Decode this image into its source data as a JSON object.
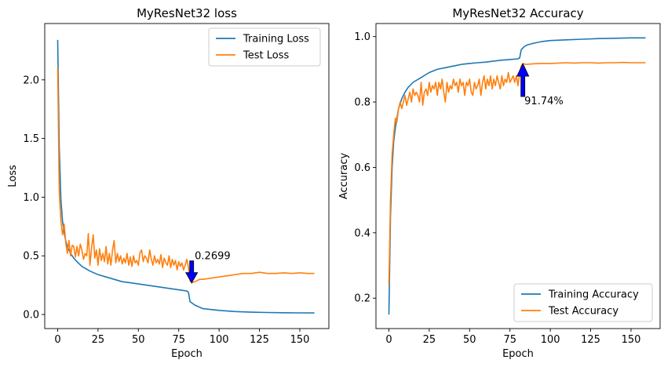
{
  "chart_data": [
    {
      "type": "line",
      "title": "MyResNet32 loss",
      "xlabel": "Epoch",
      "ylabel": "Loss",
      "xlim": [
        -8,
        168
      ],
      "ylim": [
        -0.12,
        2.48
      ],
      "xticks": [
        0,
        25,
        50,
        75,
        100,
        125,
        150
      ],
      "yticks": [
        0.0,
        0.5,
        1.0,
        1.5,
        2.0
      ],
      "ytick_labels": [
        "0.0",
        "0.5",
        "1.0",
        "1.5",
        "2.0"
      ],
      "legend_position": "top-right",
      "series": [
        {
          "name": "Training Loss",
          "color": "#1f77b4",
          "x": [
            0,
            1,
            2,
            3,
            4,
            5,
            6,
            8,
            10,
            12,
            15,
            20,
            25,
            30,
            35,
            40,
            45,
            50,
            55,
            60,
            65,
            70,
            75,
            80,
            81,
            82,
            85,
            90,
            100,
            110,
            120,
            130,
            140,
            150,
            159
          ],
          "y": [
            2.34,
            1.42,
            0.98,
            0.8,
            0.7,
            0.63,
            0.58,
            0.52,
            0.48,
            0.45,
            0.41,
            0.37,
            0.34,
            0.32,
            0.3,
            0.28,
            0.27,
            0.26,
            0.25,
            0.24,
            0.23,
            0.22,
            0.21,
            0.2,
            0.19,
            0.11,
            0.08,
            0.05,
            0.035,
            0.025,
            0.02,
            0.017,
            0.015,
            0.014,
            0.013
          ]
        },
        {
          "name": "Test Loss",
          "color": "#ff7f0e",
          "x": [
            0,
            1,
            2,
            3,
            4,
            5,
            6,
            7,
            8,
            9,
            10,
            11,
            12,
            13,
            14,
            15,
            16,
            17,
            18,
            19,
            20,
            21,
            22,
            23,
            24,
            25,
            26,
            27,
            28,
            29,
            30,
            31,
            32,
            33,
            34,
            35,
            36,
            37,
            38,
            39,
            40,
            41,
            42,
            43,
            44,
            45,
            46,
            47,
            48,
            49,
            50,
            51,
            52,
            53,
            54,
            55,
            56,
            57,
            58,
            59,
            60,
            61,
            62,
            63,
            64,
            65,
            66,
            67,
            68,
            69,
            70,
            71,
            72,
            73,
            74,
            75,
            76,
            77,
            78,
            79,
            80,
            81,
            82,
            83,
            85,
            88,
            90,
            95,
            100,
            105,
            110,
            115,
            120,
            125,
            130,
            135,
            140,
            145,
            150,
            155,
            159
          ],
          "y": [
            2.1,
            1.05,
            0.8,
            0.68,
            0.77,
            0.62,
            0.52,
            0.63,
            0.5,
            0.59,
            0.58,
            0.49,
            0.58,
            0.5,
            0.6,
            0.55,
            0.47,
            0.52,
            0.5,
            0.69,
            0.42,
            0.56,
            0.68,
            0.48,
            0.55,
            0.42,
            0.56,
            0.46,
            0.52,
            0.45,
            0.58,
            0.43,
            0.52,
            0.42,
            0.55,
            0.63,
            0.44,
            0.52,
            0.45,
            0.5,
            0.43,
            0.48,
            0.44,
            0.52,
            0.42,
            0.49,
            0.41,
            0.5,
            0.44,
            0.46,
            0.42,
            0.53,
            0.55,
            0.45,
            0.5,
            0.48,
            0.44,
            0.55,
            0.47,
            0.42,
            0.5,
            0.44,
            0.47,
            0.43,
            0.51,
            0.4,
            0.48,
            0.44,
            0.42,
            0.5,
            0.4,
            0.47,
            0.42,
            0.46,
            0.38,
            0.45,
            0.41,
            0.44,
            0.38,
            0.42,
            0.47,
            0.4,
            0.29,
            0.27,
            0.28,
            0.3,
            0.3,
            0.31,
            0.32,
            0.33,
            0.34,
            0.35,
            0.35,
            0.36,
            0.35,
            0.35,
            0.355,
            0.35,
            0.355,
            0.35,
            0.35
          ]
        }
      ],
      "annotation": {
        "text": "0.2699",
        "x": 83,
        "y": 0.2699,
        "arrow_direction": "down",
        "arrow_color": "#0000ff"
      }
    },
    {
      "type": "line",
      "title": "MyResNet32 Accuracy",
      "xlabel": "Epoch",
      "ylabel": "Accuracy",
      "xlim": [
        -8,
        168
      ],
      "ylim": [
        0.107,
        1.04
      ],
      "xticks": [
        0,
        25,
        50,
        75,
        100,
        125,
        150
      ],
      "yticks": [
        0.2,
        0.4,
        0.6,
        0.8,
        1.0
      ],
      "ytick_labels": [
        "0.2",
        "0.4",
        "0.6",
        "0.8",
        "1.0"
      ],
      "legend_position": "bottom-right",
      "series": [
        {
          "name": "Training Accuracy",
          "color": "#1f77b4",
          "x": [
            0,
            1,
            2,
            3,
            4,
            5,
            6,
            8,
            10,
            12,
            15,
            20,
            25,
            30,
            35,
            40,
            45,
            50,
            55,
            60,
            65,
            70,
            75,
            80,
            81,
            82,
            84,
            86,
            90,
            95,
            100,
            110,
            120,
            130,
            140,
            150,
            159
          ],
          "y": [
            0.15,
            0.45,
            0.6,
            0.68,
            0.72,
            0.75,
            0.78,
            0.81,
            0.83,
            0.845,
            0.86,
            0.875,
            0.89,
            0.9,
            0.905,
            0.91,
            0.915,
            0.918,
            0.92,
            0.922,
            0.925,
            0.928,
            0.93,
            0.932,
            0.935,
            0.96,
            0.97,
            0.975,
            0.98,
            0.985,
            0.988,
            0.99,
            0.992,
            0.994,
            0.995,
            0.996,
            0.996
          ]
        },
        {
          "name": "Test Accuracy",
          "color": "#ff7f0e",
          "x": [
            0,
            1,
            2,
            3,
            4,
            5,
            6,
            7,
            8,
            9,
            10,
            11,
            12,
            13,
            14,
            15,
            16,
            17,
            18,
            19,
            20,
            21,
            22,
            23,
            24,
            25,
            26,
            27,
            28,
            29,
            30,
            31,
            32,
            33,
            34,
            35,
            36,
            37,
            38,
            39,
            40,
            41,
            42,
            43,
            44,
            45,
            46,
            47,
            48,
            49,
            50,
            51,
            52,
            53,
            54,
            55,
            56,
            57,
            58,
            59,
            60,
            61,
            62,
            63,
            64,
            65,
            66,
            67,
            68,
            69,
            70,
            71,
            72,
            73,
            74,
            75,
            76,
            77,
            78,
            79,
            80,
            81,
            82,
            83,
            85,
            90,
            95,
            100,
            105,
            110,
            115,
            120,
            125,
            130,
            135,
            140,
            145,
            150,
            155,
            159
          ],
          "y": [
            0.24,
            0.5,
            0.64,
            0.7,
            0.75,
            0.74,
            0.78,
            0.8,
            0.78,
            0.8,
            0.82,
            0.79,
            0.81,
            0.83,
            0.8,
            0.84,
            0.82,
            0.83,
            0.82,
            0.8,
            0.86,
            0.79,
            0.83,
            0.84,
            0.82,
            0.86,
            0.83,
            0.85,
            0.84,
            0.86,
            0.82,
            0.86,
            0.84,
            0.87,
            0.83,
            0.8,
            0.86,
            0.83,
            0.85,
            0.84,
            0.87,
            0.85,
            0.86,
            0.83,
            0.87,
            0.85,
            0.86,
            0.82,
            0.86,
            0.85,
            0.87,
            0.83,
            0.82,
            0.86,
            0.84,
            0.85,
            0.87,
            0.82,
            0.86,
            0.88,
            0.84,
            0.87,
            0.85,
            0.88,
            0.84,
            0.87,
            0.85,
            0.88,
            0.86,
            0.84,
            0.88,
            0.85,
            0.87,
            0.86,
            0.89,
            0.86,
            0.87,
            0.88,
            0.86,
            0.88,
            0.85,
            0.89,
            0.91,
            0.9174,
            0.915,
            0.917,
            0.918,
            0.918,
            0.919,
            0.92,
            0.919,
            0.92,
            0.92,
            0.919,
            0.92,
            0.92,
            0.921,
            0.92,
            0.92,
            0.92
          ]
        }
      ],
      "annotation": {
        "text": "91.74%",
        "x": 83,
        "y": 0.9174,
        "arrow_direction": "up",
        "arrow_color": "#0000ff"
      }
    }
  ]
}
